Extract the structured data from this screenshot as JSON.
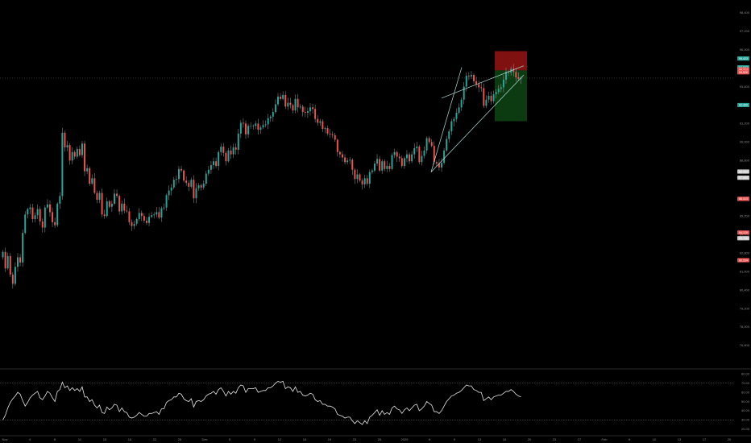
{
  "colors": {
    "background": "#000000",
    "up_candle": "#26a69a",
    "down_candle": "#ef5350",
    "wick": "#9e9e9e",
    "trendline": "#b2dfdb",
    "rsi_line": "#e6e6e6",
    "separator": "#2a2a2a",
    "stop_zone": "#7f1111",
    "target_zone": "#0c3b12"
  },
  "chart_data": [
    {
      "type": "candlestick",
      "title": "",
      "price_axis": {
        "ylim": [
          75800,
          98800
        ],
        "tick_labels": [
          "98,400",
          "97,200",
          "96,000",
          "94,800",
          "93,600",
          "92,400",
          "91,200",
          "90,000",
          "88,800",
          "87,600",
          "86,400",
          "85,200",
          "84,000",
          "82,800",
          "81,600",
          "80,400",
          "79,200",
          "78,000",
          "76,800"
        ]
      },
      "price_badges": [
        {
          "label": "95,423",
          "color": "#26a69a"
        },
        {
          "label": "94,847",
          "color": "#26a69a"
        },
        {
          "label": "94,713",
          "color": "#ef5350"
        },
        {
          "label": "94,528",
          "color": "#ef5350"
        },
        {
          "label": "92,400",
          "color": "#26a69a"
        },
        {
          "label": "88,085",
          "color": "#cccccc"
        },
        {
          "label": "87,684",
          "color": "#cccccc"
        },
        {
          "label": "86,313",
          "color": "#ef5350"
        },
        {
          "label": "84,129",
          "color": "#ef5350"
        },
        {
          "label": "83,758",
          "color": "#cccccc"
        },
        {
          "label": "82,334",
          "color": "#ef5350"
        }
      ],
      "time_axis_labels": [
        "Nov",
        "4",
        "8",
        "11",
        "15",
        "18",
        "22",
        "25",
        "Dec",
        "5",
        "9",
        "12",
        "16",
        "19",
        "23",
        "26",
        "2025",
        "6",
        "9",
        "13",
        "16",
        "20",
        "23",
        "27",
        "Feb",
        "6",
        "10",
        "13",
        "17",
        "20"
      ],
      "closes": [
        82870,
        81800,
        82600,
        81400,
        80800,
        81900,
        82520,
        82180,
        84100,
        85300,
        85650,
        85750,
        85000,
        85250,
        85650,
        84850,
        84450,
        85750,
        85950,
        85450,
        84800,
        84600,
        86000,
        86500,
        90600,
        89650,
        89800,
        88800,
        89350,
        89050,
        89550,
        89150,
        89900,
        88100,
        88300,
        87300,
        87650,
        86700,
        86250,
        86700,
        85300,
        85200,
        86150,
        85800,
        86000,
        86650,
        86500,
        85500,
        86000,
        85550,
        85500,
        84800,
        84550,
        84700,
        85000,
        85400,
        85200,
        84900,
        84750,
        85150,
        85250,
        85300,
        85450,
        85100,
        85700,
        85750,
        86550,
        86850,
        87050,
        87550,
        87600,
        88250,
        88150,
        87500,
        87350,
        87100,
        87550,
        86350,
        87000,
        87200,
        87050,
        87300,
        87950,
        88200,
        88500,
        88750,
        88450,
        89350,
        89700,
        89300,
        88750,
        89450,
        89200,
        89650,
        89500,
        90550,
        91250,
        91200,
        90500,
        91050,
        91050,
        91050,
        91200,
        90800,
        90950,
        91100,
        91150,
        91550,
        91650,
        91950,
        92450,
        92950,
        92800,
        93050,
        92300,
        92550,
        92400,
        92050,
        92800,
        92250,
        92300,
        91950,
        91900,
        92000,
        92250,
        92150,
        91500,
        91250,
        91350,
        90850,
        90900,
        90550,
        90500,
        90450,
        90150,
        89350,
        89200,
        89000,
        88700,
        88800,
        88850,
        88200,
        87600,
        87900,
        87500,
        87250,
        87650,
        87300,
        88050,
        88150,
        88600,
        88900,
        88150,
        88750,
        88250,
        88450,
        88250,
        89150,
        89350,
        89050,
        88950,
        88450,
        88950,
        89200,
        88750,
        89200,
        89600,
        89700,
        88700,
        89100,
        89450,
        90250,
        90000,
        89750,
        88700,
        88600,
        88350,
        88650,
        89450,
        90200,
        90700,
        91350,
        91500,
        91900,
        92250,
        92750,
        93600,
        94300,
        94250,
        94350,
        93950,
        93750,
        93550,
        93500,
        92350,
        92750,
        93000,
        92650,
        93100,
        93250,
        93450,
        93550,
        94050,
        94550,
        94500,
        94750,
        94550,
        94200,
        94100,
        94150
      ],
      "annotations": {
        "trendlines": [
          {
            "from": [
              0,
              88050
            ],
            "to": [
              1,
              94850
            ]
          },
          {
            "from": [
              0,
              88050
            ],
            "to": [
              1,
              94350
            ]
          },
          {
            "from": [
              0,
              92850
            ],
            "to": [
              1,
              94950
            ]
          }
        ],
        "short_position": {
          "entry": 94650,
          "stop": 95900,
          "target": 91350
        }
      }
    },
    {
      "type": "line",
      "title": "",
      "ylim": [
        18,
        82
      ],
      "levels": [
        70,
        30
      ],
      "tick_labels": [
        "80.00",
        "70.00",
        "60.00",
        "50.00",
        "40.00",
        "30.00",
        "20.00"
      ],
      "values": [
        30,
        35,
        43,
        49,
        53,
        56,
        60,
        58,
        51,
        45,
        49,
        54,
        57,
        59,
        61,
        54,
        52,
        56,
        61,
        59,
        54,
        50,
        61,
        63,
        71,
        65,
        67,
        62,
        65,
        62,
        64,
        61,
        66,
        55,
        55,
        50,
        52,
        46,
        43,
        46,
        38,
        37,
        44,
        41,
        43,
        47,
        46,
        39,
        43,
        39,
        38,
        33,
        32,
        33,
        35,
        38,
        36,
        34,
        34,
        37,
        37,
        38,
        39,
        36,
        42,
        42,
        49,
        51,
        52,
        55,
        55,
        59,
        58,
        53,
        51,
        50,
        53,
        44,
        50,
        51,
        50,
        52,
        56,
        58,
        59,
        61,
        58,
        63,
        65,
        61,
        56,
        61,
        58,
        61,
        59,
        65,
        68,
        67,
        60,
        64,
        64,
        64,
        65,
        60,
        61,
        62,
        62,
        65,
        65,
        67,
        70,
        72,
        71,
        72,
        64,
        66,
        65,
        61,
        66,
        60,
        61,
        57,
        56,
        57,
        59,
        58,
        52,
        50,
        51,
        47,
        47,
        45,
        45,
        44,
        42,
        36,
        35,
        34,
        32,
        33,
        33,
        29,
        26,
        29,
        27,
        25,
        29,
        26,
        33,
        35,
        38,
        41,
        35,
        40,
        36,
        38,
        36,
        43,
        45,
        42,
        41,
        37,
        41,
        43,
        40,
        43,
        46,
        47,
        40,
        42,
        45,
        50,
        48,
        46,
        39,
        39,
        37,
        40,
        45,
        50,
        53,
        56,
        57,
        59,
        60,
        62,
        65,
        68,
        67,
        67,
        63,
        62,
        60,
        60,
        51,
        53,
        55,
        52,
        55,
        56,
        57,
        57,
        59,
        61,
        61,
        63,
        61,
        58,
        56,
        55
      ]
    }
  ]
}
